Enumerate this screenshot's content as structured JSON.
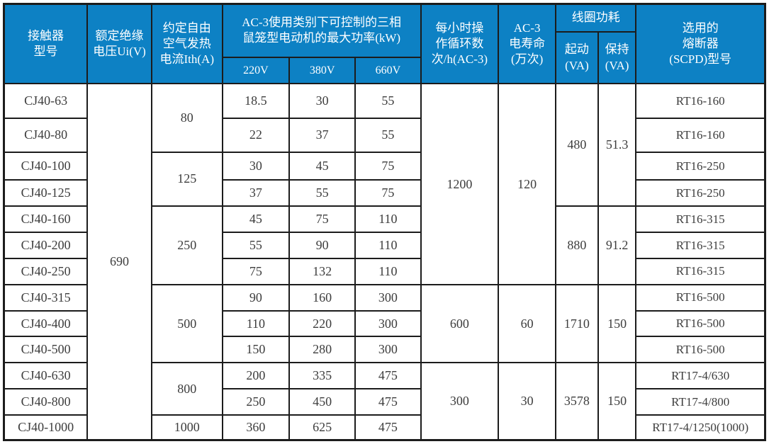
{
  "table": {
    "colors": {
      "header_bg": "#0d81c4",
      "header_text": "#ffffff",
      "body_bg": "#ffffff",
      "body_text": "#3d3d3d",
      "grid_line": "#1c1c1c"
    },
    "header": {
      "model": "接触器\n型号",
      "insulation_voltage": "额定绝缘\n电压Ui(V)",
      "ith_current": "约定自由\n空气发热\n电流Ith(A)",
      "power_group": "AC-3使用类别下可控制的三相\n鼠笼型电动机的最大功率(kW)",
      "power_220": "220V",
      "power_380": "380V",
      "power_660": "660V",
      "cycles": "每小时操\n作循环数\n次/h(AC-3)",
      "ac3_life": "AC-3\n电寿命\n(万次)",
      "coil_group": "线圈功耗",
      "coil_start": "起动\n(VA)",
      "coil_hold": "保持\n(VA)",
      "fuse": "选用的\n熔断器\n(SCPD)型号"
    },
    "body": {
      "models": [
        "CJ40-63",
        "CJ40-80",
        "CJ40-100",
        "CJ40-125",
        "CJ40-160",
        "CJ40-200",
        "CJ40-250",
        "CJ40-315",
        "CJ40-400",
        "CJ40-500",
        "CJ40-630",
        "CJ40-800",
        "CJ40-1000"
      ],
      "p220": [
        "18.5",
        "22",
        "30",
        "37",
        "45",
        "55",
        "75",
        "90",
        "110",
        "150",
        "200",
        "250",
        "360"
      ],
      "p380": [
        "30",
        "37",
        "45",
        "55",
        "75",
        "90",
        "132",
        "160",
        "220",
        "280",
        "335",
        "450",
        "625"
      ],
      "p660": [
        "55",
        "55",
        "75",
        "75",
        "110",
        "110",
        "110",
        "300",
        "300",
        "300",
        "475",
        "475",
        "475"
      ],
      "scpd": [
        "RT16-160",
        "RT16-160",
        "RT16-250",
        "RT16-250",
        "RT16-315",
        "RT16-315",
        "RT16-315",
        "RT16-500",
        "RT16-500",
        "RT16-500",
        "RT17-4/630",
        "RT17-4/800",
        "RT17-4/1250(1000)"
      ],
      "insulation_voltage": {
        "value": "690",
        "span": 13
      },
      "ith": [
        {
          "value": "80",
          "span": 2
        },
        {
          "value": "125",
          "span": 2
        },
        {
          "value": "250",
          "span": 3
        },
        {
          "value": "500",
          "span": 3
        },
        {
          "value": "800",
          "span": 2
        },
        {
          "value": "1000",
          "span": 1
        }
      ],
      "cycles": [
        {
          "value": "1200",
          "span": 7
        },
        {
          "value": "600",
          "span": 3
        },
        {
          "value": "300",
          "span": 3
        }
      ],
      "ac3_life": [
        {
          "value": "120",
          "span": 7
        },
        {
          "value": "60",
          "span": 3
        },
        {
          "value": "30",
          "span": 3
        }
      ],
      "coil_start": [
        {
          "value": "480",
          "span": 4
        },
        {
          "value": "880",
          "span": 3
        },
        {
          "value": "1710",
          "span": 3
        },
        {
          "value": "3578",
          "span": 3
        }
      ],
      "coil_hold": [
        {
          "value": "51.3",
          "span": 4
        },
        {
          "value": "91.2",
          "span": 3
        },
        {
          "value": "150",
          "span": 3
        },
        {
          "value": "150",
          "span": 3
        }
      ]
    }
  }
}
